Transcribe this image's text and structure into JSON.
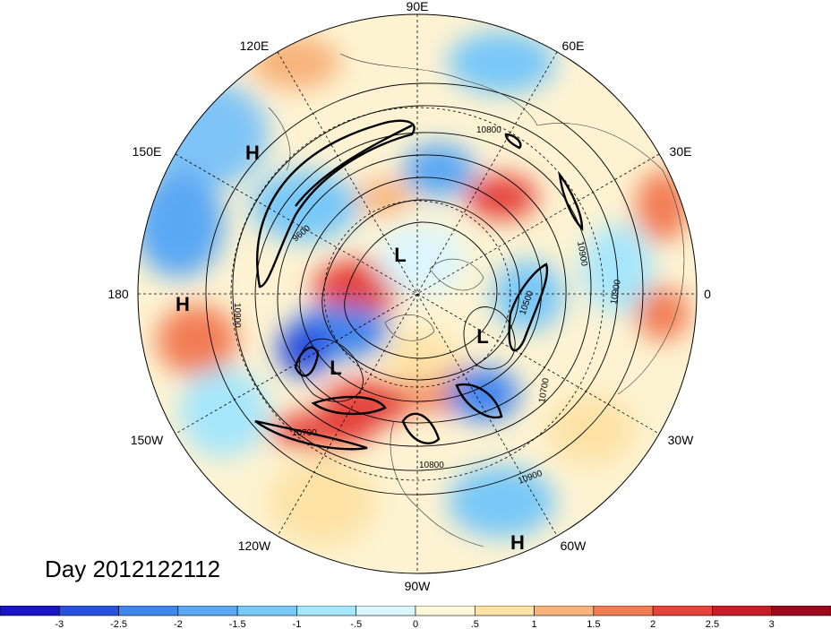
{
  "title": "Day 2012122112",
  "longitude_labels": {
    "n90e": "90E",
    "n60e": "60E",
    "n30e": "30E",
    "n0": "0",
    "n30w": "30W",
    "n60w": "60W",
    "n90w": "90W",
    "n120w": "120W",
    "n150w": "150W",
    "n180": "180",
    "n150e": "150E",
    "n120e": "120E"
  },
  "pressure_centers": [
    {
      "type": "H",
      "label": "H"
    },
    {
      "type": "H",
      "label": "H"
    },
    {
      "type": "H",
      "label": "H"
    },
    {
      "type": "L",
      "label": "L"
    },
    {
      "type": "L",
      "label": "L"
    },
    {
      "type": "L",
      "label": "L"
    }
  ],
  "contour_labels": [
    "10800",
    "10900",
    "10900",
    "10700",
    "10900",
    "10800",
    "10700",
    "10500",
    "9600",
    "10900"
  ],
  "colorbar": {
    "ticks": [
      "-3",
      "-2.5",
      "-2",
      "-1.5",
      "-1",
      "-.5",
      "0",
      ".5",
      "1",
      "1.5",
      "2",
      "2.5",
      "3"
    ],
    "colors": [
      "#1a14c8",
      "#2a50e0",
      "#3f86ef",
      "#5aa8f4",
      "#78c8f8",
      "#a6e6fb",
      "#dcf6fd",
      "#fdf7d8",
      "#fde2a6",
      "#f8b27a",
      "#f27d55",
      "#e5433b",
      "#c61e29",
      "#9a0a1c"
    ]
  }
}
